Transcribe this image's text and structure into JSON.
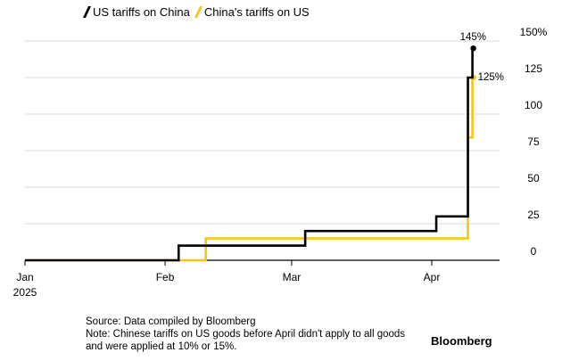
{
  "chart_data": {
    "type": "line",
    "title": "",
    "xlabel": "",
    "ylabel": "",
    "x_ticks": [
      {
        "date": "2025-01-01",
        "label": "Jan",
        "sublabel": "2025"
      },
      {
        "date": "2025-02-01",
        "label": "Feb",
        "sublabel": ""
      },
      {
        "date": "2025-03-01",
        "label": "Mar",
        "sublabel": ""
      },
      {
        "date": "2025-04-01",
        "label": "Apr",
        "sublabel": ""
      }
    ],
    "xlim": [
      "2025-01-01",
      "2025-04-16"
    ],
    "y_ticks": [
      {
        "value": 0,
        "label": "0"
      },
      {
        "value": 25,
        "label": "25"
      },
      {
        "value": 50,
        "label": "50"
      },
      {
        "value": 75,
        "label": "75"
      },
      {
        "value": 100,
        "label": "100"
      },
      {
        "value": 125,
        "label": "125"
      },
      {
        "value": 150,
        "label": "150%"
      }
    ],
    "ylim": [
      0,
      150
    ],
    "grid": true,
    "step": true,
    "series": [
      {
        "name": "US tariffs on China",
        "color": "#000000",
        "points": [
          {
            "x": "2025-01-01",
            "y": 0
          },
          {
            "x": "2025-02-04",
            "y": 10
          },
          {
            "x": "2025-03-04",
            "y": 20
          },
          {
            "x": "2025-04-02",
            "y": 30
          },
          {
            "x": "2025-04-09",
            "y": 125
          },
          {
            "x": "2025-04-10",
            "y": 145
          }
        ],
        "end_label": "145%"
      },
      {
        "name": "China's tariffs on US",
        "color": "#f5c518",
        "points": [
          {
            "x": "2025-01-01",
            "y": 0
          },
          {
            "x": "2025-02-10",
            "y": 15
          },
          {
            "x": "2025-04-09",
            "y": 84
          },
          {
            "x": "2025-04-10",
            "y": 125
          }
        ],
        "end_label": "125%"
      }
    ]
  },
  "footer": {
    "source": "Source: Data compiled by Bloomberg",
    "note": "Note: Chinese tariffs on US goods before April didn't apply to all goods and were applied at 10% or 15%.",
    "brand": "Bloomberg"
  }
}
